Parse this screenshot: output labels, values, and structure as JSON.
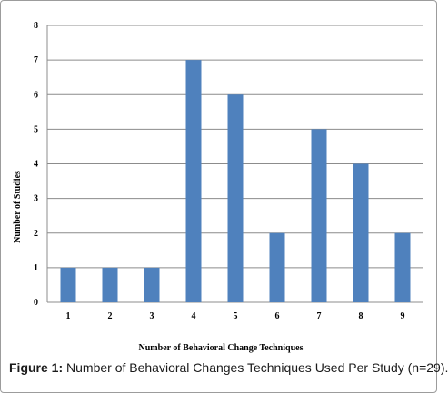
{
  "chart_data": {
    "type": "bar",
    "categories": [
      "1",
      "2",
      "3",
      "4",
      "5",
      "6",
      "7",
      "8",
      "9"
    ],
    "values": [
      1,
      1,
      1,
      7,
      6,
      2,
      5,
      4,
      2
    ],
    "xlabel": "Number of Behavioral Change Techniques",
    "ylabel": "Number of Studies",
    "ylim": [
      0,
      8
    ],
    "yticks": [
      "0",
      "1",
      "2",
      "3",
      "4",
      "5",
      "6",
      "7",
      "8"
    ],
    "grid": true,
    "bar_color": "#4f81bd",
    "grid_color": "#8c8c8c"
  },
  "caption": {
    "label": "Figure 1:",
    "text": " Number of Behavioral Changes Techniques Used Per Study (n=29)."
  }
}
